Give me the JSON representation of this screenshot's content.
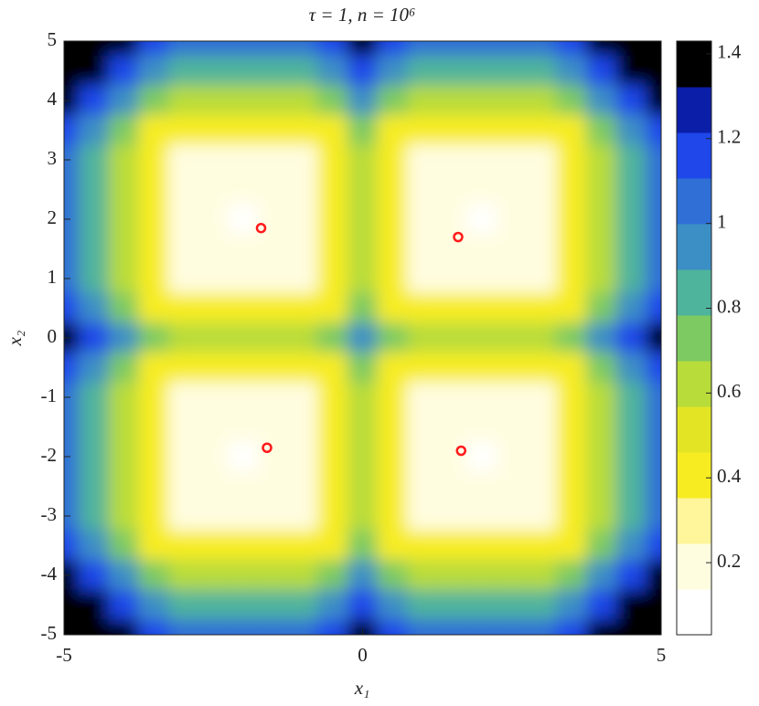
{
  "chart_data": {
    "type": "contour",
    "title": "τ = 1, n = 10⁶",
    "xlabel": "x₁",
    "ylabel": "x₂",
    "x": [
      -5,
      -4.5,
      -4,
      -3.5,
      -3,
      -2.5,
      -2,
      -1.5,
      -1,
      -0.5,
      0,
      0.5,
      1,
      1.5,
      2,
      2.5,
      3,
      3.5,
      4,
      4.5,
      5
    ],
    "y": [
      5,
      4.5,
      4,
      3.5,
      3,
      2.5,
      2,
      1.5,
      1,
      0.5,
      0,
      -0.5,
      -1,
      -1.5,
      -2,
      -2.5,
      -3,
      -3.5,
      -4,
      -4.5,
      -5
    ],
    "z": [
      [
        1.42,
        1.42,
        1.35,
        1.13,
        1.05,
        1.05,
        1.05,
        1.05,
        1.05,
        1.13,
        1.35,
        1.13,
        1.05,
        1.05,
        1.05,
        1.05,
        1.05,
        1.13,
        1.35,
        1.42,
        1.42
      ],
      [
        1.42,
        1.4,
        1.15,
        0.93,
        0.85,
        0.85,
        0.85,
        0.85,
        0.85,
        0.93,
        1.15,
        0.93,
        0.85,
        0.85,
        0.85,
        0.85,
        0.85,
        0.93,
        1.15,
        1.4,
        1.42
      ],
      [
        1.35,
        1.15,
        0.9,
        0.68,
        0.6,
        0.6,
        0.6,
        0.6,
        0.6,
        0.68,
        0.9,
        0.68,
        0.6,
        0.6,
        0.6,
        0.6,
        0.6,
        0.68,
        0.9,
        1.15,
        1.35
      ],
      [
        1.13,
        0.93,
        0.68,
        0.46,
        0.38,
        0.38,
        0.38,
        0.38,
        0.38,
        0.46,
        0.68,
        0.46,
        0.38,
        0.38,
        0.38,
        0.38,
        0.38,
        0.46,
        0.68,
        0.93,
        1.13
      ],
      [
        1.05,
        0.85,
        0.6,
        0.38,
        0.22,
        0.22,
        0.22,
        0.22,
        0.22,
        0.38,
        0.6,
        0.38,
        0.22,
        0.22,
        0.22,
        0.22,
        0.22,
        0.38,
        0.6,
        0.85,
        1.05
      ],
      [
        1.05,
        0.85,
        0.6,
        0.38,
        0.22,
        0.15,
        0.15,
        0.15,
        0.22,
        0.38,
        0.6,
        0.38,
        0.22,
        0.15,
        0.15,
        0.15,
        0.22,
        0.38,
        0.6,
        0.85,
        1.05
      ],
      [
        1.05,
        0.85,
        0.6,
        0.38,
        0.22,
        0.15,
        0.12,
        0.15,
        0.22,
        0.38,
        0.6,
        0.38,
        0.22,
        0.15,
        0.12,
        0.15,
        0.22,
        0.38,
        0.6,
        0.85,
        1.05
      ],
      [
        1.05,
        0.85,
        0.6,
        0.38,
        0.22,
        0.15,
        0.15,
        0.15,
        0.22,
        0.38,
        0.6,
        0.38,
        0.22,
        0.15,
        0.15,
        0.15,
        0.22,
        0.38,
        0.6,
        0.85,
        1.05
      ],
      [
        1.05,
        0.85,
        0.6,
        0.38,
        0.22,
        0.22,
        0.22,
        0.22,
        0.22,
        0.38,
        0.6,
        0.38,
        0.22,
        0.22,
        0.22,
        0.22,
        0.22,
        0.38,
        0.6,
        0.85,
        1.05
      ],
      [
        1.13,
        0.93,
        0.68,
        0.46,
        0.38,
        0.38,
        0.38,
        0.38,
        0.38,
        0.46,
        0.68,
        0.46,
        0.38,
        0.38,
        0.38,
        0.38,
        0.38,
        0.46,
        0.68,
        0.93,
        1.13
      ],
      [
        1.35,
        1.15,
        0.9,
        0.68,
        0.6,
        0.6,
        0.6,
        0.6,
        0.6,
        0.68,
        0.9,
        0.68,
        0.6,
        0.6,
        0.6,
        0.6,
        0.6,
        0.68,
        0.9,
        1.15,
        1.35
      ],
      [
        1.13,
        0.93,
        0.68,
        0.46,
        0.38,
        0.38,
        0.38,
        0.38,
        0.38,
        0.46,
        0.68,
        0.46,
        0.38,
        0.38,
        0.38,
        0.38,
        0.38,
        0.46,
        0.68,
        0.93,
        1.13
      ],
      [
        1.05,
        0.85,
        0.6,
        0.38,
        0.22,
        0.22,
        0.22,
        0.22,
        0.22,
        0.38,
        0.6,
        0.38,
        0.22,
        0.22,
        0.22,
        0.22,
        0.22,
        0.38,
        0.6,
        0.85,
        1.05
      ],
      [
        1.05,
        0.85,
        0.6,
        0.38,
        0.22,
        0.15,
        0.15,
        0.15,
        0.22,
        0.38,
        0.6,
        0.38,
        0.22,
        0.15,
        0.15,
        0.15,
        0.22,
        0.38,
        0.6,
        0.85,
        1.05
      ],
      [
        1.05,
        0.85,
        0.6,
        0.38,
        0.22,
        0.15,
        0.12,
        0.15,
        0.22,
        0.38,
        0.6,
        0.38,
        0.22,
        0.15,
        0.12,
        0.15,
        0.22,
        0.38,
        0.6,
        0.85,
        1.05
      ],
      [
        1.05,
        0.85,
        0.6,
        0.38,
        0.22,
        0.15,
        0.15,
        0.15,
        0.22,
        0.38,
        0.6,
        0.38,
        0.22,
        0.15,
        0.15,
        0.15,
        0.22,
        0.38,
        0.6,
        0.85,
        1.05
      ],
      [
        1.05,
        0.85,
        0.6,
        0.38,
        0.22,
        0.22,
        0.22,
        0.22,
        0.22,
        0.38,
        0.6,
        0.38,
        0.22,
        0.22,
        0.22,
        0.22,
        0.22,
        0.38,
        0.6,
        0.85,
        1.05
      ],
      [
        1.13,
        0.93,
        0.68,
        0.46,
        0.38,
        0.38,
        0.38,
        0.38,
        0.38,
        0.46,
        0.68,
        0.46,
        0.38,
        0.38,
        0.38,
        0.38,
        0.38,
        0.46,
        0.68,
        0.93,
        1.13
      ],
      [
        1.35,
        1.15,
        0.9,
        0.68,
        0.6,
        0.6,
        0.6,
        0.6,
        0.6,
        0.68,
        0.9,
        0.68,
        0.6,
        0.6,
        0.6,
        0.6,
        0.6,
        0.68,
        0.9,
        1.15,
        1.35
      ],
      [
        1.42,
        1.4,
        1.15,
        0.93,
        0.85,
        0.85,
        0.85,
        0.85,
        0.85,
        0.93,
        1.15,
        0.93,
        0.85,
        0.85,
        0.85,
        0.85,
        0.85,
        0.93,
        1.15,
        1.4,
        1.42
      ],
      [
        1.42,
        1.42,
        1.35,
        1.13,
        1.05,
        1.05,
        1.05,
        1.05,
        1.05,
        1.13,
        1.35,
        1.13,
        1.05,
        1.05,
        1.05,
        1.05,
        1.05,
        1.13,
        1.35,
        1.42,
        1.42
      ]
    ],
    "xlim": [
      -5,
      5
    ],
    "ylim": [
      -5,
      5
    ],
    "xticks": [
      -5,
      0,
      5
    ],
    "yticks": [
      -5,
      -4,
      -3,
      -2,
      -1,
      0,
      1,
      2,
      3,
      4,
      5
    ],
    "clim": [
      0.03,
      1.43
    ],
    "cticks": [
      0.2,
      0.4,
      0.6,
      0.8,
      1,
      1.2,
      1.4
    ],
    "colormap": [
      "#ffffff",
      "#fffde0",
      "#fff59a",
      "#f7ec22",
      "#e3e524",
      "#b8dc3a",
      "#7dca62",
      "#4fb49c",
      "#3c8fc4",
      "#2f6fd6",
      "#1f47ea",
      "#0b1ea8",
      "#000000"
    ],
    "points": {
      "x": [
        -1.7,
        1.6,
        -1.6,
        1.65
      ],
      "y": [
        1.85,
        1.7,
        -1.85,
        -1.9
      ],
      "color": "#ff1a1a"
    }
  }
}
